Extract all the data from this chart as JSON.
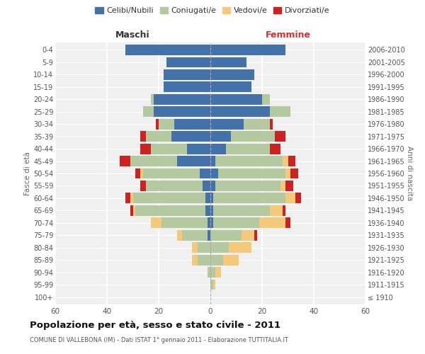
{
  "age_groups": [
    "100+",
    "95-99",
    "90-94",
    "85-89",
    "80-84",
    "75-79",
    "70-74",
    "65-69",
    "60-64",
    "55-59",
    "50-54",
    "45-49",
    "40-44",
    "35-39",
    "30-34",
    "25-29",
    "20-24",
    "15-19",
    "10-14",
    "5-9",
    "0-4"
  ],
  "birth_years": [
    "≤ 1910",
    "1911-1915",
    "1916-1920",
    "1921-1925",
    "1926-1930",
    "1931-1935",
    "1936-1940",
    "1941-1945",
    "1946-1950",
    "1951-1955",
    "1956-1960",
    "1961-1965",
    "1966-1970",
    "1971-1975",
    "1976-1980",
    "1981-1985",
    "1986-1990",
    "1991-1995",
    "1996-2000",
    "2001-2005",
    "2006-2010"
  ],
  "male": {
    "celibi": [
      0,
      0,
      0,
      0,
      0,
      1,
      1,
      2,
      2,
      3,
      4,
      13,
      9,
      15,
      14,
      22,
      22,
      18,
      18,
      17,
      33
    ],
    "coniugati": [
      0,
      0,
      1,
      5,
      5,
      10,
      18,
      27,
      28,
      22,
      22,
      18,
      14,
      10,
      6,
      4,
      1,
      0,
      0,
      0,
      0
    ],
    "vedovi": [
      0,
      0,
      0,
      2,
      2,
      2,
      4,
      1,
      1,
      0,
      1,
      0,
      0,
      0,
      0,
      0,
      0,
      0,
      0,
      0,
      0
    ],
    "divorziati": [
      0,
      0,
      0,
      0,
      0,
      0,
      0,
      1,
      2,
      2,
      2,
      4,
      4,
      2,
      1,
      0,
      0,
      0,
      0,
      0,
      0
    ]
  },
  "female": {
    "nubili": [
      0,
      0,
      0,
      0,
      0,
      0,
      1,
      1,
      1,
      2,
      3,
      2,
      6,
      8,
      13,
      23,
      20,
      16,
      17,
      14,
      29
    ],
    "coniugate": [
      0,
      1,
      2,
      5,
      7,
      12,
      18,
      22,
      28,
      25,
      26,
      26,
      17,
      17,
      10,
      8,
      3,
      0,
      0,
      0,
      0
    ],
    "vedove": [
      0,
      1,
      2,
      6,
      9,
      5,
      10,
      5,
      4,
      2,
      2,
      2,
      0,
      0,
      0,
      0,
      0,
      0,
      0,
      0,
      0
    ],
    "divorziate": [
      0,
      0,
      0,
      0,
      0,
      1,
      2,
      1,
      2,
      3,
      3,
      3,
      4,
      4,
      1,
      0,
      0,
      0,
      0,
      0,
      0
    ]
  },
  "colors": {
    "celibi": "#4472a8",
    "coniugati": "#b5c9a0",
    "vedovi": "#f5c97a",
    "divorziati": "#cc2222"
  },
  "xlim": 60,
  "title": "Popolazione per età, sesso e stato civile - 2011",
  "subtitle": "COMUNE DI VALLEBONA (IM) - Dati ISTAT 1° gennaio 2011 - Elaborazione TUTTITALIA.IT",
  "ylabel": "Fasce di età",
  "ylabel_right": "Anni di nascita",
  "xlabel_left": "Maschi",
  "xlabel_right": "Femmine",
  "legend_labels": [
    "Celibi/Nubili",
    "Coniugati/e",
    "Vedovi/e",
    "Divorziati/e"
  ],
  "bg_color": "#f0f0f0",
  "bar_height": 0.85
}
